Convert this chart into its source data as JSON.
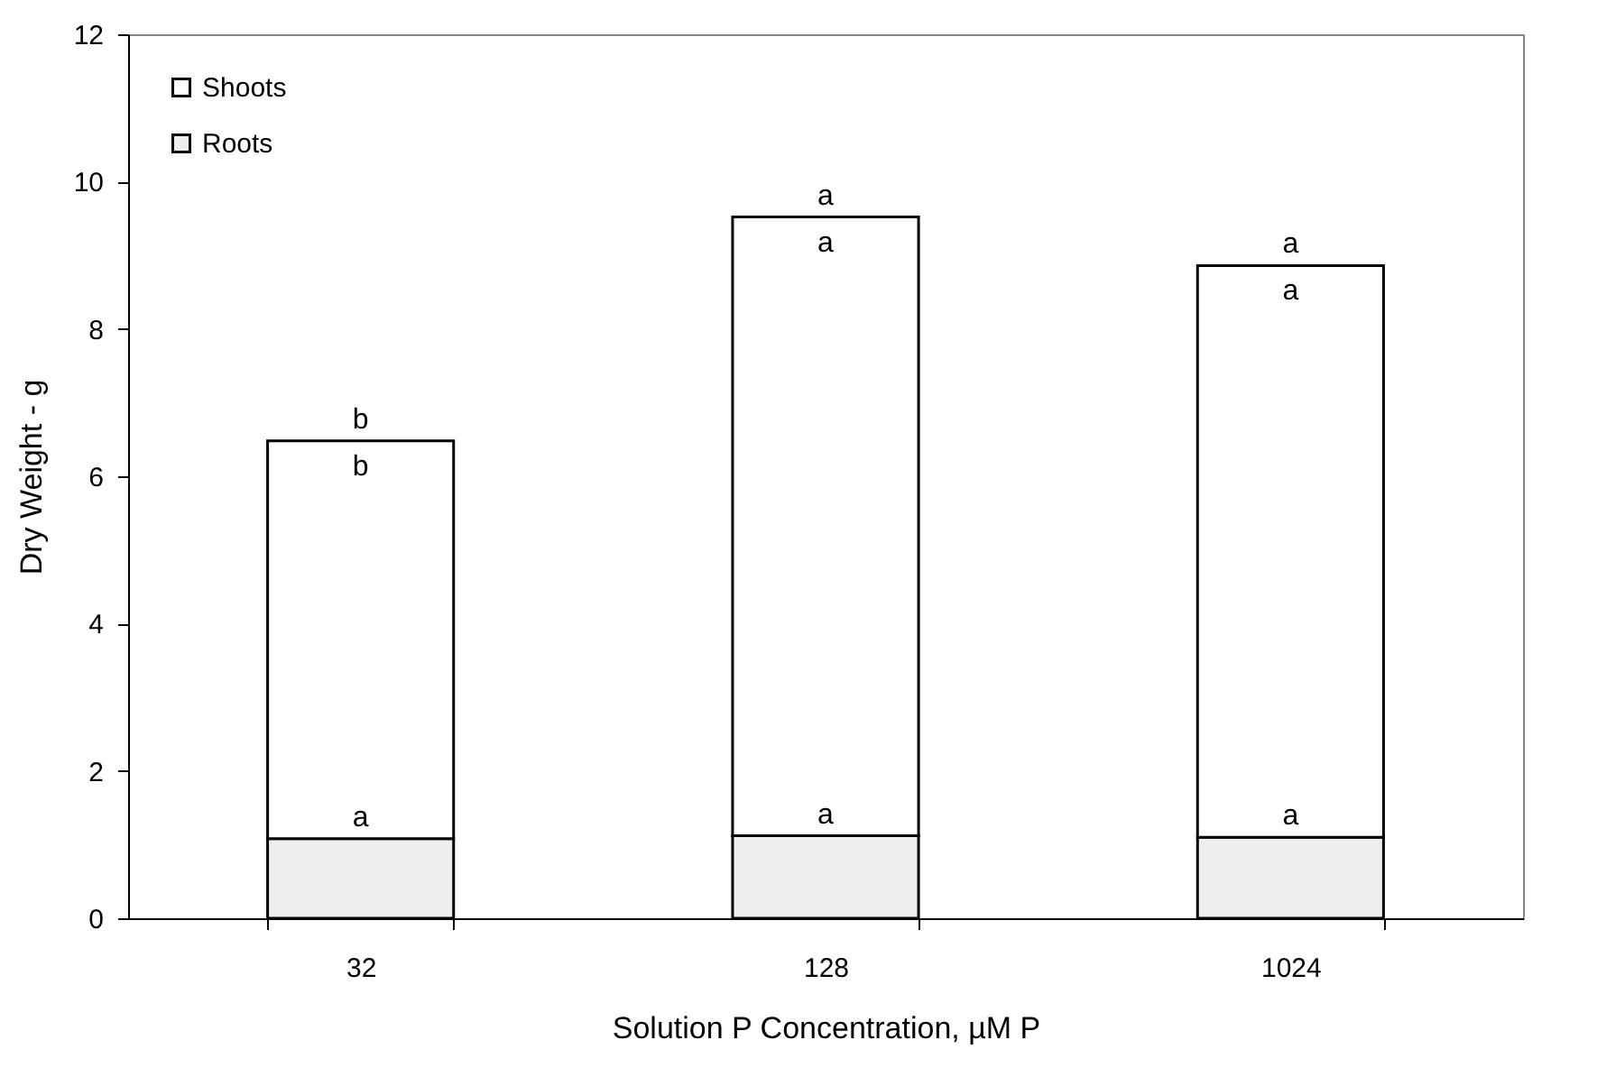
{
  "chart_data": {
    "type": "bar",
    "xlabel": "Solution P Concentration, µM P",
    "ylabel": "Dry Weight - g",
    "categories": [
      "32",
      "128",
      "1024"
    ],
    "stacked": true,
    "series": [
      {
        "name": "Roots",
        "color": "#eeeeee",
        "values": [
          1.08,
          1.12,
          1.1
        ]
      },
      {
        "name": "Shoots",
        "color": "#ffffff",
        "values": [
          5.4,
          8.4,
          7.76
        ]
      }
    ],
    "ylim": [
      0,
      12
    ],
    "yticks": [
      0,
      2,
      4,
      6,
      8,
      10,
      12
    ],
    "grid": false,
    "legend": "top left",
    "annotations": [
      {
        "text": "b",
        "x": "32",
        "y": 6.48
      },
      {
        "text": "b",
        "x": "32",
        "y": 6.48
      },
      {
        "text": "a",
        "x": "32",
        "y": 1.08
      },
      {
        "text": "a",
        "x": "128",
        "y": 9.52
      },
      {
        "text": "a",
        "x": "128",
        "y": 9.52
      },
      {
        "text": "a",
        "x": "128",
        "y": 1.12
      },
      {
        "text": "a",
        "x": "1024",
        "y": 8.86
      },
      {
        "text": "a",
        "x": "1024",
        "y": 8.86
      },
      {
        "text": "a",
        "x": "1024",
        "y": 1.1
      }
    ]
  }
}
